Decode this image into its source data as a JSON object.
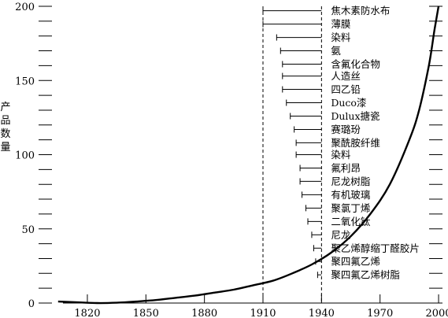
{
  "chart_data": {
    "type": "line",
    "title": "",
    "xlabel": "",
    "ylabel": "产品数量",
    "xlim": [
      1795,
      2002
    ],
    "ylim": [
      0,
      200
    ],
    "x_ticks": [
      1820,
      1850,
      1880,
      1910,
      1940,
      1970,
      2000
    ],
    "y_ticks": [
      0,
      50,
      100,
      150,
      200
    ],
    "y_minor_step": 10,
    "reference_lines": [
      1910,
      1940
    ],
    "curve": {
      "x": [
        1805,
        1815,
        1825,
        1835,
        1845,
        1855,
        1865,
        1875,
        1885,
        1895,
        1905,
        1915,
        1925,
        1935,
        1945,
        1955,
        1965,
        1975,
        1985,
        1990,
        1995,
        1998,
        2000
      ],
      "y": [
        1,
        0.5,
        0,
        0.2,
        1,
        2,
        3.5,
        5,
        7,
        9,
        12,
        15,
        20,
        26,
        34,
        45,
        60,
        80,
        110,
        130,
        160,
        185,
        200
      ]
    },
    "products": [
      {
        "label": "焦木素防水布",
        "start": 1910,
        "value": 197
      },
      {
        "label": "薄膜",
        "start": 1910,
        "value": 188
      },
      {
        "label": "染料",
        "start": 1917,
        "value": 179
      },
      {
        "label": "氨",
        "start": 1919,
        "value": 170
      },
      {
        "label": "含氟化合物",
        "start": 1920,
        "value": 161
      },
      {
        "label": "人造丝",
        "start": 1920,
        "value": 153
      },
      {
        "label": "四乙铅",
        "start": 1920,
        "value": 144
      },
      {
        "label": "Duco漆",
        "start": 1922,
        "value": 135
      },
      {
        "label": "Dulux搪瓷",
        "start": 1924,
        "value": 126
      },
      {
        "label": "赛璐玢",
        "start": 1926,
        "value": 117
      },
      {
        "label": "聚酰胺纤维",
        "start": 1927,
        "value": 108
      },
      {
        "label": "染料",
        "start": 1927,
        "value": 100
      },
      {
        "label": "氟利昂",
        "start": 1929,
        "value": 91
      },
      {
        "label": "尼龙树脂",
        "start": 1929,
        "value": 82
      },
      {
        "label": "有机玻璃",
        "start": 1930,
        "value": 73
      },
      {
        "label": "聚氯丁烯",
        "start": 1932,
        "value": 64
      },
      {
        "label": "二氧化钛",
        "start": 1933,
        "value": 55
      },
      {
        "label": "尼龙",
        "start": 1935,
        "value": 46
      },
      {
        "label": "聚乙烯醇缩丁醛胶片",
        "start": 1936,
        "value": 37
      },
      {
        "label": "聚四氟乙烯",
        "start": 1937,
        "value": 28
      },
      {
        "label": "聚四氟乙烯树脂",
        "start": 1938,
        "value": 19
      }
    ]
  }
}
